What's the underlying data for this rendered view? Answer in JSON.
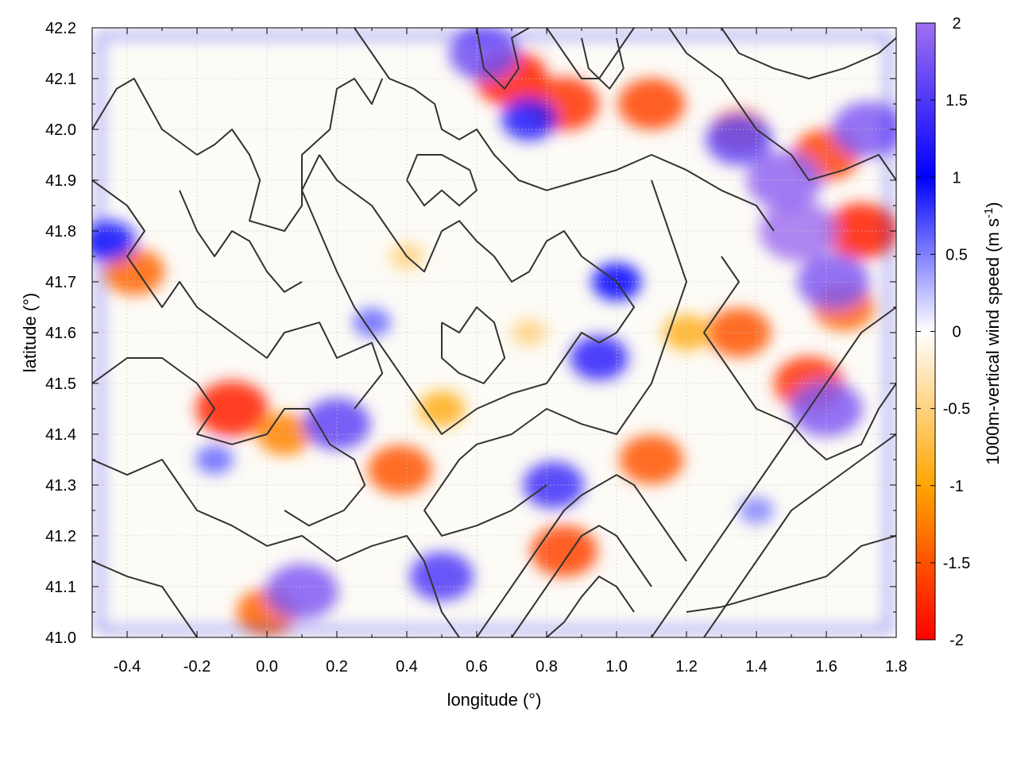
{
  "chart_data": {
    "type": "heatmap",
    "title": "",
    "xlabel": "longitude (°)",
    "ylabel": "latitude (°)",
    "xlim": [
      -0.5,
      1.8
    ],
    "ylim": [
      41.0,
      42.2
    ],
    "x_ticks": [
      "-0.4",
      "-0.2",
      "0.0",
      "0.2",
      "0.4",
      "0.6",
      "0.8",
      "1.0",
      "1.2",
      "1.4",
      "1.6",
      "1.8"
    ],
    "x_tick_values": [
      -0.4,
      -0.2,
      0.0,
      0.2,
      0.4,
      0.6,
      0.8,
      1.0,
      1.2,
      1.4,
      1.6,
      1.8
    ],
    "y_ticks": [
      "41.0",
      "41.1",
      "41.2",
      "41.3",
      "41.4",
      "41.5",
      "41.6",
      "41.7",
      "41.8",
      "41.9",
      "42.0",
      "42.1",
      "42.2"
    ],
    "y_tick_values": [
      41.0,
      41.1,
      41.2,
      41.3,
      41.4,
      41.5,
      41.6,
      41.7,
      41.8,
      41.9,
      42.0,
      42.1,
      42.2
    ],
    "grid": true,
    "colorbar": {
      "label": "1000m-vertical wind speed (m s",
      "label_sup": "-1",
      "label_close": ")",
      "range": [
        -2,
        2
      ],
      "ticks": [
        "-2",
        "-1.5",
        "-1",
        "-0.5",
        "0",
        "0.5",
        "1",
        "1.5",
        "2"
      ],
      "tick_values": [
        -2,
        -1.5,
        -1,
        -0.5,
        0,
        0.5,
        1,
        1.5,
        2
      ],
      "stops": [
        {
          "value": -2,
          "color": "#ff0000"
        },
        {
          "value": -1,
          "color": "#ffa500"
        },
        {
          "value": 0,
          "color": "#ffffff"
        },
        {
          "value": 1,
          "color": "#0000ff"
        },
        {
          "value": 2,
          "color": "#a070f0"
        }
      ]
    },
    "contour_color": "#333333",
    "hotspots": [
      {
        "lon": -0.1,
        "lat": 41.45,
        "w": -1.8
      },
      {
        "lon": 0.05,
        "lat": 41.4,
        "w": -1.2
      },
      {
        "lon": -0.38,
        "lat": 41.72,
        "w": -1.4
      },
      {
        "lon": 0.38,
        "lat": 41.33,
        "w": -1.5
      },
      {
        "lon": 0.7,
        "lat": 42.1,
        "w": -1.8
      },
      {
        "lon": 0.85,
        "lat": 42.05,
        "w": -1.7
      },
      {
        "lon": 1.1,
        "lat": 42.05,
        "w": -1.6
      },
      {
        "lon": 1.35,
        "lat": 42.0,
        "w": -1.2
      },
      {
        "lon": 1.6,
        "lat": 41.95,
        "w": -1.6
      },
      {
        "lon": 1.7,
        "lat": 41.8,
        "w": -1.8
      },
      {
        "lon": 1.65,
        "lat": 41.65,
        "w": -1.4
      },
      {
        "lon": 1.35,
        "lat": 41.6,
        "w": -1.5
      },
      {
        "lon": 1.55,
        "lat": 41.5,
        "w": -1.7
      },
      {
        "lon": 0.85,
        "lat": 41.17,
        "w": -1.6
      },
      {
        "lon": 1.1,
        "lat": 41.35,
        "w": -1.5
      },
      {
        "lon": 0.0,
        "lat": 41.05,
        "w": -1.4
      },
      {
        "lon": 0.5,
        "lat": 41.45,
        "w": -0.9
      },
      {
        "lon": 1.2,
        "lat": 41.6,
        "w": -0.9
      },
      {
        "lon": 0.4,
        "lat": 41.75,
        "w": -0.5
      },
      {
        "lon": 0.75,
        "lat": 41.6,
        "w": -0.5
      },
      {
        "lon": 0.75,
        "lat": 42.02,
        "w": 1.2
      },
      {
        "lon": 0.95,
        "lat": 41.55,
        "w": 1.3
      },
      {
        "lon": 1.0,
        "lat": 41.7,
        "w": 1.0
      },
      {
        "lon": 0.2,
        "lat": 41.42,
        "w": 1.6
      },
      {
        "lon": -0.45,
        "lat": 41.78,
        "w": 1.1
      },
      {
        "lon": 0.1,
        "lat": 41.09,
        "w": 1.8
      },
      {
        "lon": 1.52,
        "lat": 41.8,
        "w": 2.0
      },
      {
        "lon": 1.62,
        "lat": 41.7,
        "w": 1.8
      },
      {
        "lon": 1.48,
        "lat": 41.9,
        "w": 1.9
      },
      {
        "lon": 1.35,
        "lat": 41.98,
        "w": 1.6
      },
      {
        "lon": 1.6,
        "lat": 41.45,
        "w": 1.8
      },
      {
        "lon": 1.72,
        "lat": 42.0,
        "w": 1.8
      },
      {
        "lon": 0.5,
        "lat": 41.12,
        "w": 1.5
      },
      {
        "lon": 0.82,
        "lat": 41.3,
        "w": 1.4
      },
      {
        "lon": 0.62,
        "lat": 42.15,
        "w": 1.7
      },
      {
        "lon": 0.3,
        "lat": 41.62,
        "w": 0.6
      },
      {
        "lon": -0.15,
        "lat": 41.35,
        "w": 0.6
      },
      {
        "lon": 1.4,
        "lat": 41.25,
        "w": 0.5
      }
    ],
    "contours": [
      [
        [
          -0.5,
          42.0
        ],
        [
          -0.43,
          42.08
        ],
        [
          -0.38,
          42.1
        ],
        [
          -0.3,
          42.0
        ],
        [
          -0.2,
          41.95
        ],
        [
          -0.15,
          41.97
        ],
        [
          -0.1,
          42.0
        ],
        [
          -0.05,
          41.95
        ],
        [
          -0.02,
          41.9
        ],
        [
          -0.05,
          41.82
        ],
        [
          0.05,
          41.8
        ],
        [
          0.1,
          41.85
        ],
        [
          0.1,
          41.95
        ],
        [
          0.18,
          42.0
        ],
        [
          0.2,
          42.08
        ],
        [
          0.25,
          42.1
        ],
        [
          0.3,
          42.05
        ],
        [
          0.33,
          42.1
        ]
      ],
      [
        [
          -0.5,
          41.9
        ],
        [
          -0.4,
          41.85
        ],
        [
          -0.35,
          41.8
        ],
        [
          -0.4,
          41.75
        ],
        [
          -0.35,
          41.7
        ],
        [
          -0.3,
          41.65
        ],
        [
          -0.25,
          41.7
        ],
        [
          -0.2,
          41.65
        ],
        [
          -0.1,
          41.6
        ],
        [
          0.0,
          41.55
        ],
        [
          0.05,
          41.6
        ],
        [
          0.15,
          41.62
        ],
        [
          0.2,
          41.55
        ],
        [
          0.3,
          41.58
        ],
        [
          0.33,
          41.52
        ],
        [
          0.25,
          41.45
        ]
      ],
      [
        [
          -0.5,
          41.5
        ],
        [
          -0.4,
          41.55
        ],
        [
          -0.3,
          41.55
        ],
        [
          -0.2,
          41.5
        ],
        [
          -0.15,
          41.45
        ],
        [
          -0.2,
          41.4
        ],
        [
          -0.1,
          41.38
        ],
        [
          0.0,
          41.4
        ],
        [
          0.05,
          41.45
        ],
        [
          0.12,
          41.45
        ],
        [
          0.18,
          41.38
        ],
        [
          0.25,
          41.35
        ],
        [
          0.28,
          41.3
        ],
        [
          0.22,
          41.25
        ],
        [
          0.12,
          41.22
        ],
        [
          0.05,
          41.25
        ]
      ],
      [
        [
          -0.5,
          41.35
        ],
        [
          -0.4,
          41.32
        ],
        [
          -0.3,
          41.35
        ],
        [
          -0.25,
          41.3
        ],
        [
          -0.2,
          41.25
        ],
        [
          -0.1,
          41.22
        ],
        [
          0.0,
          41.18
        ],
        [
          0.1,
          41.2
        ],
        [
          0.2,
          41.15
        ],
        [
          0.3,
          41.18
        ],
        [
          0.4,
          41.2
        ],
        [
          0.45,
          41.15
        ],
        [
          0.5,
          41.05
        ],
        [
          0.55,
          41.0
        ]
      ],
      [
        [
          -0.5,
          41.15
        ],
        [
          -0.4,
          41.12
        ],
        [
          -0.3,
          41.1
        ],
        [
          -0.25,
          41.05
        ],
        [
          -0.2,
          41.0
        ]
      ],
      [
        [
          0.25,
          42.2
        ],
        [
          0.3,
          42.15
        ],
        [
          0.35,
          42.1
        ],
        [
          0.42,
          42.08
        ],
        [
          0.48,
          42.05
        ],
        [
          0.5,
          42.0
        ],
        [
          0.55,
          41.98
        ],
        [
          0.6,
          42.0
        ],
        [
          0.65,
          41.95
        ],
        [
          0.72,
          41.9
        ],
        [
          0.8,
          41.88
        ],
        [
          0.9,
          41.9
        ],
        [
          1.0,
          41.92
        ],
        [
          1.1,
          41.95
        ],
        [
          1.2,
          41.92
        ],
        [
          1.3,
          41.88
        ],
        [
          1.4,
          41.85
        ],
        [
          1.45,
          41.8
        ]
      ],
      [
        [
          0.6,
          42.2
        ],
        [
          0.62,
          42.12
        ],
        [
          0.68,
          42.08
        ],
        [
          0.72,
          42.12
        ],
        [
          0.7,
          42.18
        ],
        [
          0.75,
          42.2
        ]
      ],
      [
        [
          0.8,
          42.2
        ],
        [
          0.85,
          42.15
        ],
        [
          0.9,
          42.1
        ],
        [
          0.95,
          42.1
        ],
        [
          1.0,
          42.15
        ],
        [
          1.05,
          42.2
        ]
      ],
      [
        [
          0.9,
          42.18
        ],
        [
          0.92,
          42.12
        ],
        [
          0.98,
          42.08
        ],
        [
          1.02,
          42.12
        ],
        [
          1.0,
          42.18
        ]
      ],
      [
        [
          1.15,
          42.2
        ],
        [
          1.2,
          42.15
        ],
        [
          1.3,
          42.1
        ],
        [
          1.35,
          42.05
        ],
        [
          1.4,
          42.0
        ],
        [
          1.5,
          41.95
        ],
        [
          1.55,
          41.9
        ],
        [
          1.65,
          41.92
        ],
        [
          1.75,
          41.95
        ],
        [
          1.8,
          41.9
        ]
      ],
      [
        [
          1.3,
          42.2
        ],
        [
          1.35,
          42.15
        ],
        [
          1.45,
          42.12
        ],
        [
          1.55,
          42.1
        ],
        [
          1.65,
          42.12
        ],
        [
          1.75,
          42.15
        ],
        [
          1.8,
          42.18
        ]
      ],
      [
        [
          0.15,
          41.95
        ],
        [
          0.2,
          41.9
        ],
        [
          0.3,
          41.85
        ],
        [
          0.35,
          41.8
        ],
        [
          0.4,
          41.75
        ],
        [
          0.45,
          41.72
        ],
        [
          0.5,
          41.8
        ],
        [
          0.55,
          41.82
        ],
        [
          0.6,
          41.78
        ],
        [
          0.65,
          41.75
        ],
        [
          0.7,
          41.7
        ],
        [
          0.75,
          41.72
        ],
        [
          0.8,
          41.78
        ],
        [
          0.85,
          41.8
        ],
        [
          0.9,
          41.75
        ],
        [
          1.0,
          41.7
        ],
        [
          1.05,
          41.65
        ],
        [
          1.0,
          41.6
        ],
        [
          0.95,
          41.58
        ],
        [
          0.9,
          41.6
        ],
        [
          0.85,
          41.55
        ],
        [
          0.8,
          41.5
        ],
        [
          0.7,
          41.48
        ],
        [
          0.6,
          41.45
        ],
        [
          0.5,
          41.4
        ],
        [
          0.45,
          41.45
        ],
        [
          0.4,
          41.5
        ],
        [
          0.35,
          41.55
        ],
        [
          0.3,
          41.6
        ],
        [
          0.25,
          41.65
        ],
        [
          0.2,
          41.72
        ],
        [
          0.15,
          41.8
        ],
        [
          0.1,
          41.88
        ],
        [
          0.15,
          41.95
        ]
      ],
      [
        [
          0.4,
          41.9
        ],
        [
          0.45,
          41.85
        ],
        [
          0.5,
          41.88
        ],
        [
          0.55,
          41.85
        ],
        [
          0.6,
          41.88
        ],
        [
          0.58,
          41.92
        ],
        [
          0.5,
          41.95
        ],
        [
          0.43,
          41.95
        ],
        [
          0.4,
          41.9
        ]
      ],
      [
        [
          1.1,
          41.9
        ],
        [
          1.15,
          41.8
        ],
        [
          1.2,
          41.7
        ],
        [
          1.15,
          41.6
        ],
        [
          1.1,
          41.5
        ],
        [
          1.05,
          41.45
        ],
        [
          1.0,
          41.4
        ],
        [
          0.9,
          41.42
        ],
        [
          0.8,
          41.45
        ],
        [
          0.7,
          41.4
        ],
        [
          0.6,
          41.38
        ],
        [
          0.55,
          41.35
        ],
        [
          0.5,
          41.3
        ],
        [
          0.45,
          41.25
        ],
        [
          0.5,
          41.2
        ],
        [
          0.6,
          41.22
        ],
        [
          0.7,
          41.25
        ],
        [
          0.8,
          41.3
        ]
      ],
      [
        [
          1.8,
          41.65
        ],
        [
          1.7,
          41.6
        ],
        [
          1.65,
          41.55
        ],
        [
          1.6,
          41.5
        ],
        [
          1.55,
          41.45
        ],
        [
          1.5,
          41.4
        ],
        [
          1.45,
          41.35
        ],
        [
          1.4,
          41.3
        ],
        [
          1.35,
          41.25
        ],
        [
          1.3,
          41.2
        ],
        [
          1.25,
          41.15
        ],
        [
          1.2,
          41.1
        ],
        [
          1.15,
          41.05
        ],
        [
          1.1,
          41.0
        ]
      ],
      [
        [
          1.8,
          41.4
        ],
        [
          1.7,
          41.35
        ],
        [
          1.6,
          41.3
        ],
        [
          1.5,
          41.25
        ],
        [
          1.45,
          41.2
        ],
        [
          1.4,
          41.15
        ],
        [
          1.35,
          41.1
        ],
        [
          1.3,
          41.05
        ],
        [
          1.25,
          41.0
        ]
      ],
      [
        [
          1.8,
          41.2
        ],
        [
          1.7,
          41.18
        ],
        [
          1.6,
          41.12
        ],
        [
          1.5,
          41.1
        ],
        [
          1.4,
          41.08
        ],
        [
          1.3,
          41.06
        ],
        [
          1.2,
          41.05
        ]
      ],
      [
        [
          0.6,
          41.0
        ],
        [
          0.65,
          41.05
        ],
        [
          0.7,
          41.1
        ],
        [
          0.75,
          41.15
        ],
        [
          0.8,
          41.2
        ],
        [
          0.85,
          41.25
        ],
        [
          0.9,
          41.28
        ],
        [
          0.95,
          41.3
        ],
        [
          1.0,
          41.32
        ],
        [
          1.05,
          41.3
        ],
        [
          1.1,
          41.25
        ],
        [
          1.15,
          41.2
        ],
        [
          1.2,
          41.15
        ]
      ],
      [
        [
          0.7,
          41.0
        ],
        [
          0.75,
          41.05
        ],
        [
          0.8,
          41.1
        ],
        [
          0.85,
          41.15
        ],
        [
          0.9,
          41.2
        ],
        [
          0.95,
          41.22
        ],
        [
          1.0,
          41.2
        ],
        [
          1.05,
          41.15
        ],
        [
          1.1,
          41.1
        ]
      ],
      [
        [
          0.8,
          41.0
        ],
        [
          0.85,
          41.03
        ],
        [
          0.9,
          41.08
        ],
        [
          0.95,
          41.12
        ],
        [
          1.0,
          41.1
        ],
        [
          1.05,
          41.05
        ]
      ],
      [
        [
          1.3,
          41.75
        ],
        [
          1.35,
          41.7
        ],
        [
          1.3,
          41.65
        ],
        [
          1.25,
          41.6
        ],
        [
          1.3,
          41.55
        ],
        [
          1.35,
          41.5
        ],
        [
          1.4,
          41.45
        ],
        [
          1.5,
          41.42
        ],
        [
          1.55,
          41.38
        ],
        [
          1.6,
          41.35
        ],
        [
          1.7,
          41.38
        ],
        [
          1.75,
          41.45
        ],
        [
          1.8,
          41.5
        ]
      ],
      [
        [
          -0.25,
          41.88
        ],
        [
          -0.2,
          41.8
        ],
        [
          -0.15,
          41.75
        ],
        [
          -0.1,
          41.8
        ],
        [
          -0.05,
          41.78
        ],
        [
          0.0,
          41.72
        ],
        [
          0.05,
          41.68
        ],
        [
          0.1,
          41.7
        ]
      ],
      [
        [
          0.5,
          41.62
        ],
        [
          0.55,
          41.6
        ],
        [
          0.6,
          41.65
        ],
        [
          0.65,
          41.62
        ],
        [
          0.68,
          41.55
        ],
        [
          0.62,
          41.5
        ],
        [
          0.55,
          41.52
        ],
        [
          0.5,
          41.55
        ],
        [
          0.5,
          41.62
        ]
      ]
    ]
  }
}
